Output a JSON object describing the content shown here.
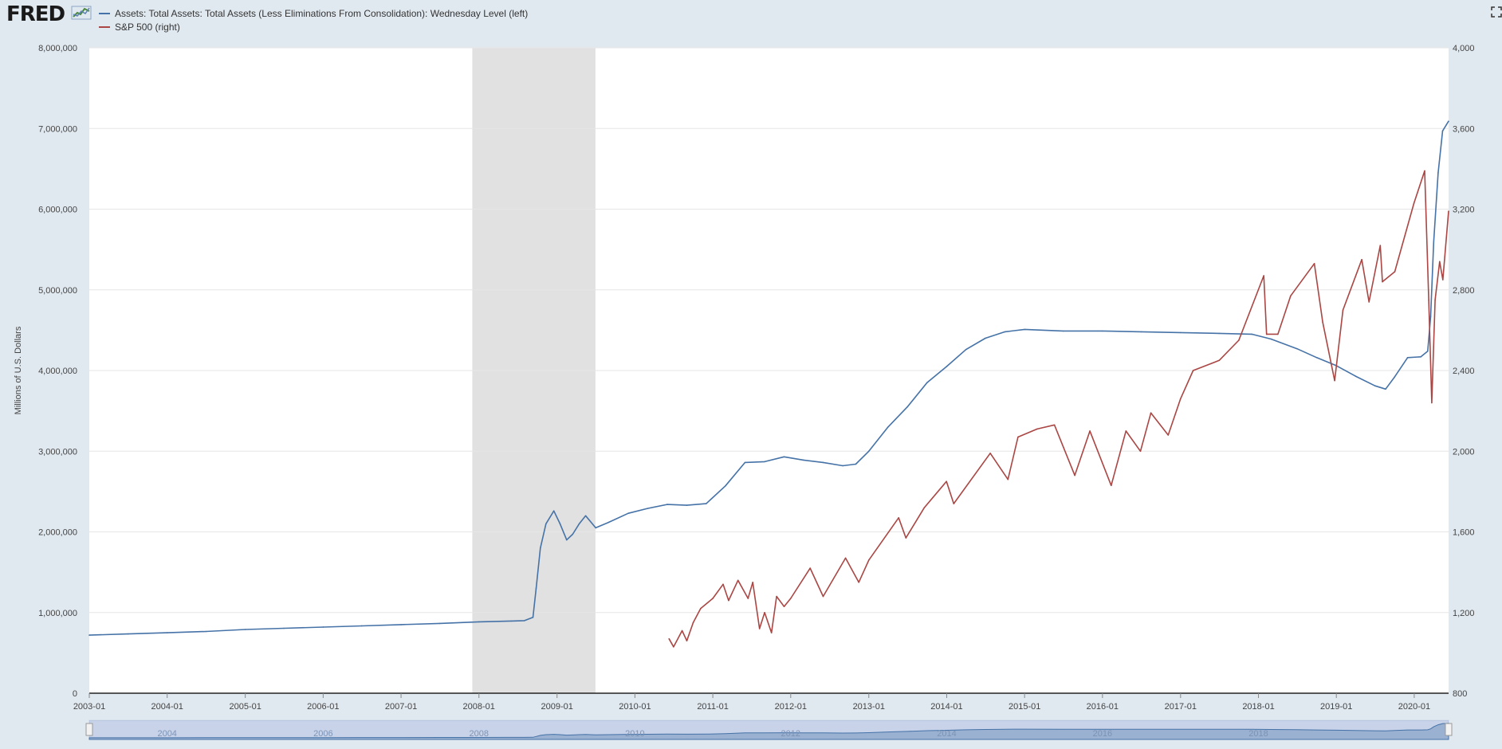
{
  "app": {
    "logo_text": "FRED",
    "logo_icon": "fred-chart-icon",
    "fullscreen_icon": "fullscreen-icon"
  },
  "chart_data": {
    "type": "line",
    "title": "",
    "xlabel": "",
    "ylabel": "Millions of U.S. Dollars",
    "y2label": "",
    "x_ticks": [
      "2003-01",
      "2004-01",
      "2005-01",
      "2006-01",
      "2007-01",
      "2008-01",
      "2009-01",
      "2010-01",
      "2011-01",
      "2012-01",
      "2013-01",
      "2014-01",
      "2015-01",
      "2016-01",
      "2017-01",
      "2018-01",
      "2019-01",
      "2020-01"
    ],
    "y_left_ticks": [
      "0",
      "1,000,000",
      "2,000,000",
      "3,000,000",
      "4,000,000",
      "5,000,000",
      "6,000,000",
      "7,000,000",
      "8,000,000"
    ],
    "y_right_ticks": [
      "800",
      "1,200",
      "1,600",
      "2,000",
      "2,400",
      "2,800",
      "3,200",
      "3,600",
      "4,000"
    ],
    "ylim_left": [
      0,
      8000000
    ],
    "ylim_right": [
      800,
      4000
    ],
    "xlim": [
      "2003-01-01",
      "2020-06-10"
    ],
    "grid": "horizontal",
    "legend_position": "top-left",
    "recession_shading": [
      {
        "start": "2007-12-01",
        "end": "2009-06-30",
        "color": "#e1e1e1"
      }
    ],
    "navigator_labels": [
      "2004",
      "2006",
      "2008",
      "2010",
      "2012",
      "2014",
      "2016",
      "2018"
    ],
    "series": [
      {
        "name": "Assets: Total Assets: Total Assets (Less Eliminations From Consolidation): Wednesday Level (left)",
        "axis": "left",
        "color": "#4572a7",
        "points": [
          [
            "2003-01-01",
            720000
          ],
          [
            "2003-07-01",
            735000
          ],
          [
            "2004-01-01",
            750000
          ],
          [
            "2004-07-01",
            765000
          ],
          [
            "2005-01-01",
            790000
          ],
          [
            "2005-07-01",
            805000
          ],
          [
            "2006-01-01",
            820000
          ],
          [
            "2006-07-01",
            835000
          ],
          [
            "2007-01-01",
            850000
          ],
          [
            "2007-07-01",
            865000
          ],
          [
            "2008-01-01",
            885000
          ],
          [
            "2008-06-01",
            895000
          ],
          [
            "2008-08-01",
            900000
          ],
          [
            "2008-09-10",
            940000
          ],
          [
            "2008-09-25",
            1300000
          ],
          [
            "2008-10-15",
            1800000
          ],
          [
            "2008-11-10",
            2100000
          ],
          [
            "2008-12-17",
            2260000
          ],
          [
            "2009-01-15",
            2100000
          ],
          [
            "2009-02-15",
            1900000
          ],
          [
            "2009-03-15",
            1970000
          ],
          [
            "2009-04-15",
            2100000
          ],
          [
            "2009-05-15",
            2200000
          ],
          [
            "2009-07-01",
            2050000
          ],
          [
            "2009-09-01",
            2120000
          ],
          [
            "2009-12-01",
            2230000
          ],
          [
            "2010-03-01",
            2290000
          ],
          [
            "2010-06-01",
            2340000
          ],
          [
            "2010-09-01",
            2330000
          ],
          [
            "2010-12-01",
            2350000
          ],
          [
            "2011-03-01",
            2570000
          ],
          [
            "2011-06-01",
            2860000
          ],
          [
            "2011-09-01",
            2870000
          ],
          [
            "2011-12-01",
            2930000
          ],
          [
            "2012-03-01",
            2890000
          ],
          [
            "2012-06-01",
            2860000
          ],
          [
            "2012-09-01",
            2820000
          ],
          [
            "2012-11-01",
            2840000
          ],
          [
            "2013-01-01",
            3000000
          ],
          [
            "2013-04-01",
            3300000
          ],
          [
            "2013-07-01",
            3550000
          ],
          [
            "2013-10-01",
            3850000
          ],
          [
            "2014-01-01",
            4050000
          ],
          [
            "2014-04-01",
            4260000
          ],
          [
            "2014-07-01",
            4400000
          ],
          [
            "2014-10-01",
            4480000
          ],
          [
            "2015-01-01",
            4510000
          ],
          [
            "2015-07-01",
            4490000
          ],
          [
            "2016-01-01",
            4490000
          ],
          [
            "2016-07-01",
            4480000
          ],
          [
            "2017-01-01",
            4470000
          ],
          [
            "2017-07-01",
            4460000
          ],
          [
            "2017-12-01",
            4450000
          ],
          [
            "2018-03-01",
            4390000
          ],
          [
            "2018-07-01",
            4270000
          ],
          [
            "2018-10-01",
            4160000
          ],
          [
            "2019-01-01",
            4060000
          ],
          [
            "2019-04-01",
            3930000
          ],
          [
            "2019-07-01",
            3810000
          ],
          [
            "2019-08-20",
            3770000
          ],
          [
            "2019-10-01",
            3920000
          ],
          [
            "2019-12-01",
            4160000
          ],
          [
            "2020-02-01",
            4170000
          ],
          [
            "2020-03-04",
            4240000
          ],
          [
            "2020-03-18",
            4670000
          ],
          [
            "2020-04-01",
            5590000
          ],
          [
            "2020-04-22",
            6450000
          ],
          [
            "2020-05-13",
            6970000
          ],
          [
            "2020-06-10",
            7090000
          ]
        ]
      },
      {
        "name": "S&P 500 (right)",
        "axis": "right",
        "color": "#aa4643",
        "points": [
          [
            "2010-06-10",
            1070
          ],
          [
            "2010-07-01",
            1030
          ],
          [
            "2010-08-10",
            1110
          ],
          [
            "2010-09-01",
            1060
          ],
          [
            "2010-10-01",
            1150
          ],
          [
            "2010-11-05",
            1220
          ],
          [
            "2011-01-01",
            1270
          ],
          [
            "2011-02-18",
            1340
          ],
          [
            "2011-03-16",
            1260
          ],
          [
            "2011-04-29",
            1360
          ],
          [
            "2011-06-15",
            1270
          ],
          [
            "2011-07-07",
            1350
          ],
          [
            "2011-08-08",
            1120
          ],
          [
            "2011-09-01",
            1200
          ],
          [
            "2011-10-03",
            1100
          ],
          [
            "2011-10-27",
            1280
          ],
          [
            "2011-12-01",
            1230
          ],
          [
            "2012-01-01",
            1270
          ],
          [
            "2012-04-01",
            1420
          ],
          [
            "2012-06-01",
            1280
          ],
          [
            "2012-09-14",
            1470
          ],
          [
            "2012-11-15",
            1350
          ],
          [
            "2013-01-01",
            1460
          ],
          [
            "2013-05-21",
            1670
          ],
          [
            "2013-06-24",
            1570
          ],
          [
            "2013-09-18",
            1720
          ],
          [
            "2013-12-31",
            1850
          ],
          [
            "2014-02-03",
            1740
          ],
          [
            "2014-07-24",
            1990
          ],
          [
            "2014-10-15",
            1860
          ],
          [
            "2014-12-01",
            2070
          ],
          [
            "2015-03-01",
            2110
          ],
          [
            "2015-05-21",
            2130
          ],
          [
            "2015-08-24",
            1880
          ],
          [
            "2015-11-03",
            2100
          ],
          [
            "2016-02-11",
            1830
          ],
          [
            "2016-04-20",
            2100
          ],
          [
            "2016-06-27",
            2000
          ],
          [
            "2016-08-15",
            2190
          ],
          [
            "2016-11-04",
            2080
          ],
          [
            "2017-01-01",
            2260
          ],
          [
            "2017-03-01",
            2400
          ],
          [
            "2017-07-01",
            2450
          ],
          [
            "2017-10-01",
            2550
          ],
          [
            "2018-01-26",
            2870
          ],
          [
            "2018-02-08",
            2580
          ],
          [
            "2018-04-02",
            2580
          ],
          [
            "2018-06-01",
            2770
          ],
          [
            "2018-09-20",
            2930
          ],
          [
            "2018-10-29",
            2640
          ],
          [
            "2018-12-24",
            2350
          ],
          [
            "2019-02-01",
            2700
          ],
          [
            "2019-04-30",
            2950
          ],
          [
            "2019-06-03",
            2740
          ],
          [
            "2019-07-26",
            3020
          ],
          [
            "2019-08-05",
            2840
          ],
          [
            "2019-10-02",
            2890
          ],
          [
            "2019-12-31",
            3230
          ],
          [
            "2020-02-19",
            3390
          ],
          [
            "2020-03-09",
            2750
          ],
          [
            "2020-03-23",
            2240
          ],
          [
            "2020-04-08",
            2750
          ],
          [
            "2020-04-29",
            2940
          ],
          [
            "2020-05-14",
            2850
          ],
          [
            "2020-06-10",
            3190
          ]
        ]
      }
    ]
  }
}
